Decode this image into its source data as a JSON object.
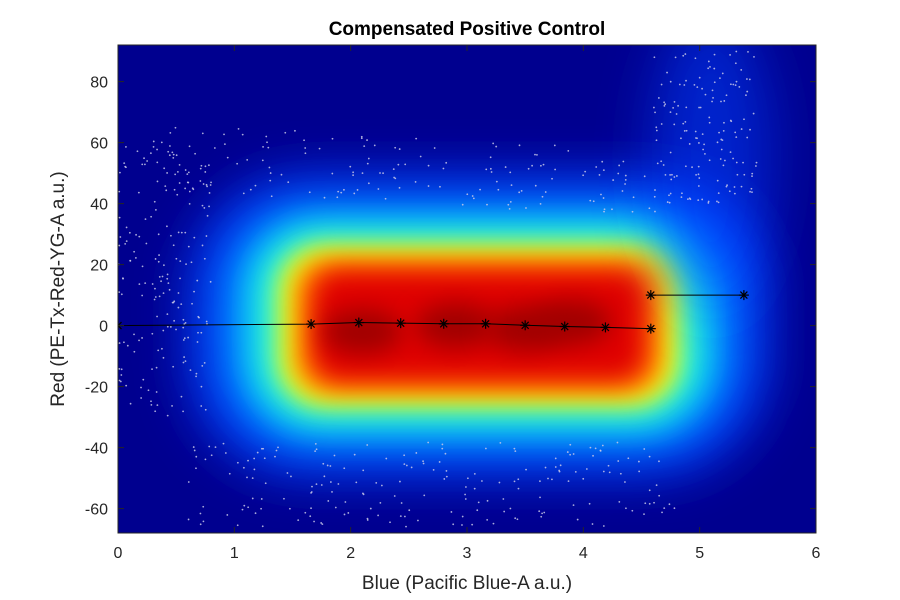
{
  "chart_data": {
    "type": "scatter",
    "title": "Compensated Positive Control",
    "xlabel": "Blue (Pacific Blue-A a.u.)",
    "ylabel": "Red (PE-Tx-Red-YG-A a.u.)",
    "xlim": [
      0,
      6
    ],
    "ylim": [
      -68,
      92
    ],
    "xticks": [
      0,
      1,
      2,
      3,
      4,
      5,
      6
    ],
    "yticks": [
      -60,
      -40,
      -20,
      0,
      20,
      40,
      60,
      80
    ],
    "grid": false,
    "colormap": "jet",
    "background_color": "#00008f",
    "density_region": {
      "x_range": [
        1.6,
        4.6
      ],
      "y_range": [
        -20,
        20
      ],
      "description_value": "high density core"
    },
    "series": [
      {
        "marker": "asterisk",
        "color": "#000000",
        "x": [
          0,
          1.66,
          2.07,
          2.43,
          2.8,
          3.16,
          3.5,
          3.84,
          4.19,
          4.58
        ],
        "y": [
          0,
          0.5,
          1.0,
          0.8,
          0.6,
          0.6,
          0.1,
          -0.3,
          -0.6,
          -1.0
        ]
      },
      {
        "marker": "asterisk",
        "color": "#000000",
        "x": [
          4.58,
          5.38
        ],
        "y": [
          10.0,
          10.0
        ]
      }
    ]
  }
}
